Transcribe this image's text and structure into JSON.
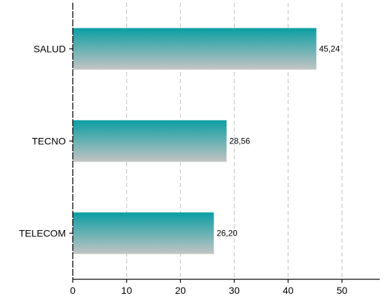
{
  "chart_data": {
    "type": "bar",
    "orientation": "horizontal",
    "categories": [
      "SALUD",
      "TECNO",
      "TELECOM"
    ],
    "values": [
      45.24,
      28.56,
      26.2
    ],
    "data_labels": [
      "45,24",
      "28,56",
      "26,20"
    ],
    "title": "",
    "xlabel": "",
    "ylabel": "",
    "xlim": [
      0,
      57
    ],
    "xticks": [
      0,
      10,
      20,
      30,
      40,
      50
    ],
    "xtick_labels": [
      "0",
      "10",
      "20",
      "30",
      "40",
      "50"
    ],
    "grid": "vertical dashed",
    "legend": "none",
    "colors": {
      "bar_top": "#0a9ea2",
      "bar_bottom": "#c4c4c4",
      "grid": "#c8c8c8",
      "axis": "#000000"
    }
  }
}
